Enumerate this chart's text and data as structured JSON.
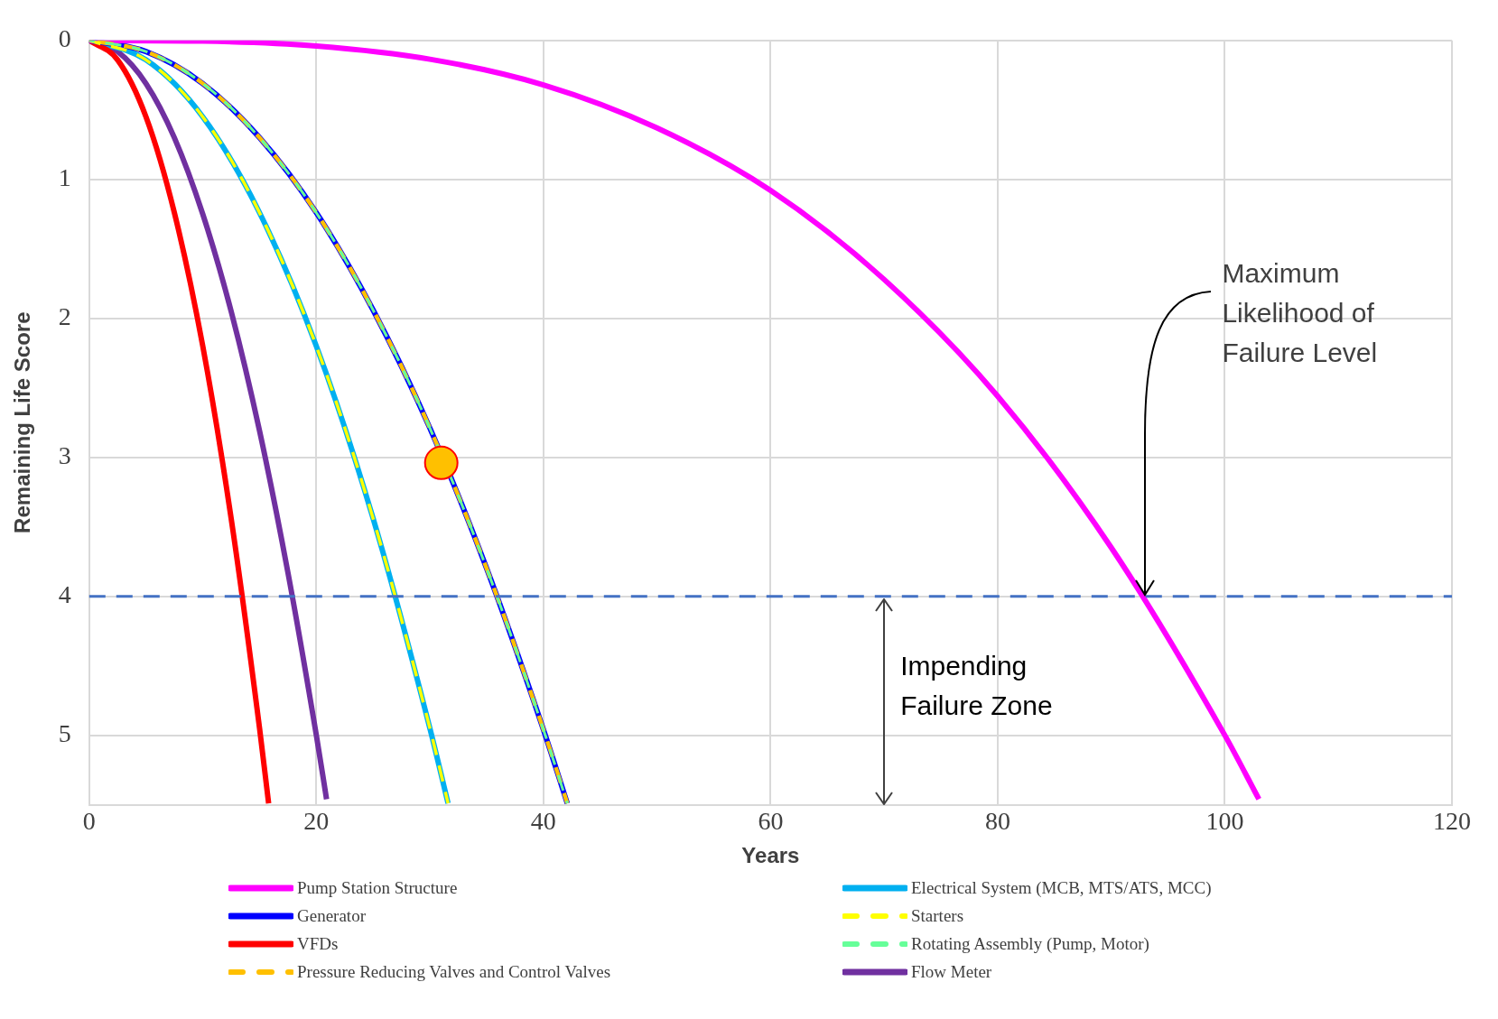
{
  "chart_data": {
    "type": "line",
    "xlabel": "Years",
    "ylabel": "Remaining Life Score",
    "xlim": [
      0,
      120
    ],
    "xticks": [
      0,
      20,
      40,
      60,
      80,
      100,
      120
    ],
    "ylim": [
      5.5,
      0
    ],
    "yticks": [
      0,
      1,
      2,
      3,
      4,
      5
    ],
    "grid": true,
    "legend": "bottom",
    "marker": "none",
    "series": [
      {
        "name": "Pump Station Structure",
        "color": "#ff00ff",
        "line_style": "solid",
        "x": [
          0,
          10,
          20,
          30,
          40,
          50,
          60,
          70,
          80,
          90,
          100,
          103
        ],
        "values": [
          0,
          0.005,
          0.04,
          0.135,
          0.32,
          0.63,
          1.08,
          1.72,
          2.56,
          3.65,
          5.0,
          5.46
        ]
      },
      {
        "name": "Generator",
        "color": "#0000ff",
        "line_style": "solid",
        "x": [
          0,
          5,
          10,
          15,
          20,
          25,
          30,
          35,
          40,
          42.1
        ],
        "values": [
          0,
          0.08,
          0.31,
          0.7,
          1.24,
          1.94,
          2.79,
          3.8,
          4.96,
          5.49
        ]
      },
      {
        "name": "VFDs",
        "color": "#ff0000",
        "line_style": "solid",
        "x": [
          0,
          2.5,
          5,
          7.5,
          10,
          12.5,
          15,
          15.8
        ],
        "values": [
          0,
          0.14,
          0.55,
          1.24,
          2.2,
          3.44,
          4.95,
          5.49
        ]
      },
      {
        "name": "Pressure Reducing Valves and Control Valves",
        "color": "#ffc000",
        "line_style": "dashed",
        "x": [
          0,
          5,
          10,
          15,
          20,
          25,
          30,
          35,
          40,
          42.1
        ],
        "values": [
          0,
          0.08,
          0.31,
          0.7,
          1.24,
          1.94,
          2.79,
          3.8,
          4.96,
          5.49
        ]
      },
      {
        "name": "Electrical System (MCB, MTS/ATS, MCC)",
        "color": "#00b0f0",
        "line_style": "solid",
        "x": [
          0,
          5,
          10,
          15,
          20,
          25,
          30,
          31.6
        ],
        "values": [
          0,
          0.14,
          0.55,
          1.24,
          2.2,
          3.44,
          4.95,
          5.49
        ]
      },
      {
        "name": "Starters",
        "color": "#ffff00",
        "line_style": "dashed",
        "x": [
          0,
          5,
          10,
          15,
          20,
          25,
          30,
          31.6
        ],
        "values": [
          0,
          0.14,
          0.55,
          1.24,
          2.2,
          3.44,
          4.95,
          5.49
        ]
      },
      {
        "name": "Rotating Assembly (Pump, Motor)",
        "color": "#66ff99",
        "line_style": "dashed",
        "x": [
          0,
          5,
          10,
          15,
          20,
          25,
          30,
          35,
          40,
          42.1
        ],
        "values": [
          0,
          0.08,
          0.31,
          0.7,
          1.24,
          1.94,
          2.79,
          3.8,
          4.96,
          5.49
        ]
      },
      {
        "name": "Flow Meter",
        "color": "#7030a0",
        "line_style": "solid",
        "x": [
          0,
          2.5,
          5,
          7.5,
          10,
          12.5,
          15,
          17.5,
          20,
          20.9
        ],
        "values": [
          0,
          0.08,
          0.31,
          0.7,
          1.25,
          1.95,
          2.81,
          3.83,
          5.0,
          5.46
        ]
      },
      {
        "type": "scatter",
        "marker": "circle",
        "color": "#ffc000",
        "x": [
          31
        ],
        "values": [
          3.04
        ]
      }
    ],
    "ref_lines": [
      {
        "axis": "y",
        "value": 4,
        "color": "#4472c4",
        "line_style": "dashed"
      }
    ],
    "annotations": [
      {
        "text": "Maximum Likelihood of Failure Level",
        "x": 93,
        "y": 4
      },
      {
        "text": "Impending Failure Zone",
        "x": 70,
        "y": 4
      }
    ]
  }
}
